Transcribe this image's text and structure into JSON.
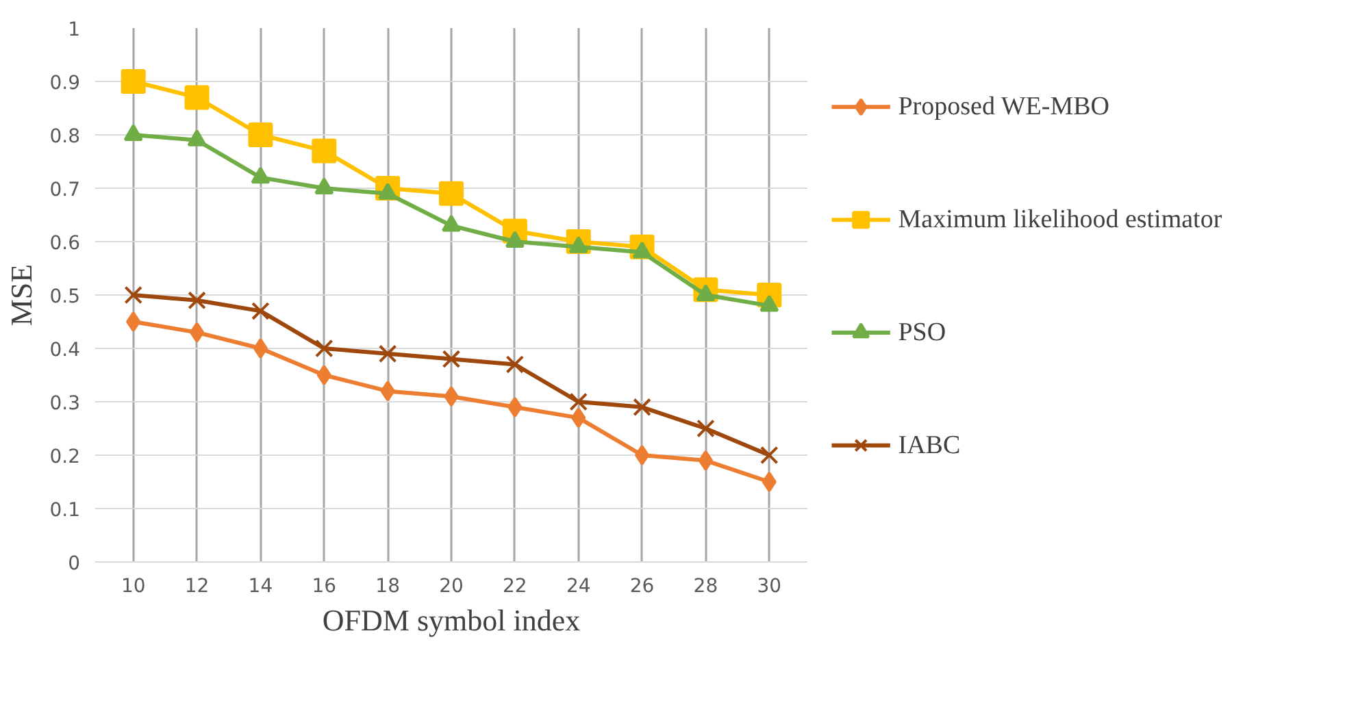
{
  "chart_data": {
    "type": "line",
    "xlabel": "OFDM symbol index",
    "ylabel": "MSE",
    "categories": [
      "10",
      "12",
      "14",
      "16",
      "18",
      "20",
      "22",
      "24",
      "26",
      "28",
      "30"
    ],
    "series": [
      {
        "name": "Proposed WE-MBO",
        "color": "#ed7d31",
        "marker": "diamond",
        "values": [
          0.45,
          0.43,
          0.4,
          0.35,
          0.32,
          0.31,
          0.29,
          0.27,
          0.2,
          0.19,
          0.15
        ]
      },
      {
        "name": "Maximum likelihood estimator",
        "color": "#ffc000",
        "marker": "square",
        "values": [
          0.9,
          0.87,
          0.8,
          0.77,
          0.7,
          0.69,
          0.62,
          0.6,
          0.59,
          0.51,
          0.5
        ]
      },
      {
        "name": "PSO",
        "color": "#70ad47",
        "marker": "triangle",
        "values": [
          0.8,
          0.79,
          0.72,
          0.7,
          0.69,
          0.63,
          0.6,
          0.59,
          0.58,
          0.5,
          0.48
        ]
      },
      {
        "name": "IABC",
        "color": "#9e480e",
        "marker": "cross",
        "values": [
          0.5,
          0.49,
          0.47,
          0.4,
          0.39,
          0.38,
          0.37,
          0.3,
          0.29,
          0.25,
          0.2
        ]
      }
    ],
    "ylim": [
      0,
      1
    ],
    "yticks": [
      0,
      0.1,
      0.2,
      0.3,
      0.4,
      0.5,
      0.6,
      0.7,
      0.8,
      0.9,
      1
    ],
    "grid": true,
    "legend": "right",
    "line_style": "solid"
  }
}
